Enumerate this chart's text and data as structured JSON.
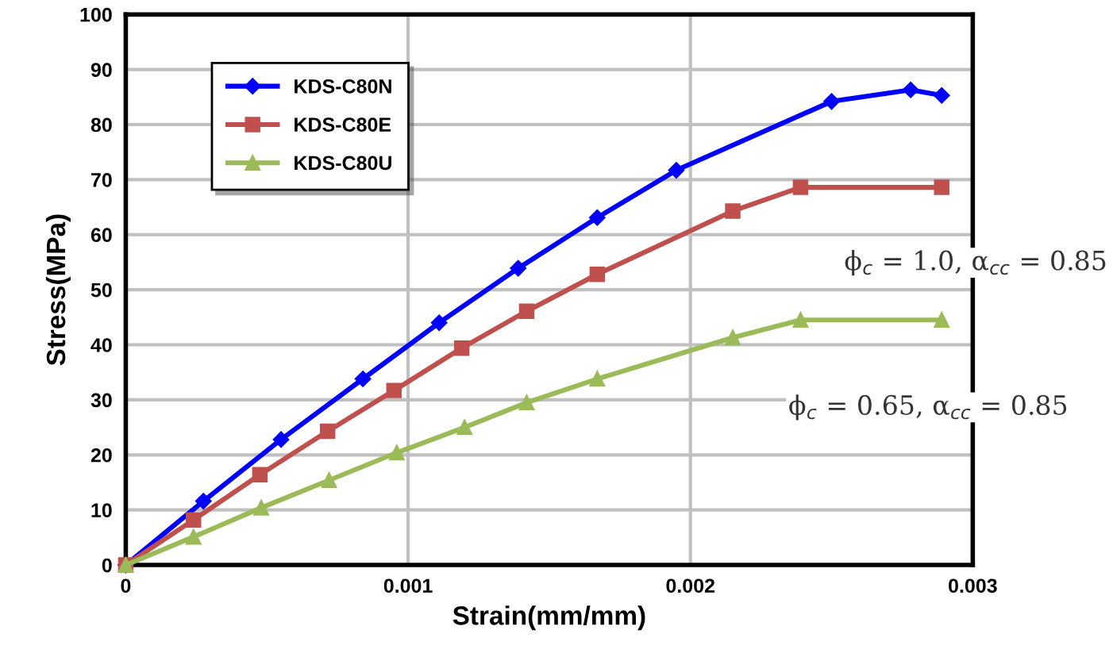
{
  "chart_data": {
    "type": "line",
    "xlabel": "Strain(mm/mm)",
    "ylabel": "Stress(MPa)",
    "xlim": [
      0,
      0.003
    ],
    "xticks": [
      0,
      0.001,
      0.002,
      0.003
    ],
    "ylim": [
      0,
      100
    ],
    "yticks": [
      0,
      10,
      20,
      30,
      40,
      50,
      60,
      70,
      80,
      90,
      100
    ],
    "grid": true,
    "legend": "top left",
    "annotations": [
      "ϕ$_{c}$ = 1.0, α$_{cc}$ = 0.85",
      "ϕ$_{c}$ = 0.65, α$_{cc}$ = 0.85"
    ],
    "series": [
      {
        "name": "KDS-C80N",
        "color": "#0000ff",
        "marker": "diamond",
        "x": [
          0,
          0.000275,
          0.00055,
          0.00084,
          0.00111,
          0.00139,
          0.00167,
          0.00195,
          0.0025,
          0.00278,
          0.00289
        ],
        "values": [
          0,
          11.6,
          22.8,
          33.8,
          44.0,
          53.9,
          63.1,
          71.7,
          84.2,
          86.3,
          85.3
        ]
      },
      {
        "name": "KDS-C80E",
        "color": "#c0504d",
        "marker": "square",
        "x": [
          0,
          0.00024,
          0.000475,
          0.000715,
          0.00095,
          0.00119,
          0.00142,
          0.00167,
          0.00215,
          0.00239,
          0.00289
        ],
        "values": [
          0,
          8.2,
          16.4,
          24.3,
          31.7,
          39.4,
          46.1,
          52.8,
          64.3,
          68.6,
          68.6
        ]
      },
      {
        "name": "KDS-C80U",
        "color": "#9bbb59",
        "marker": "triangle",
        "x": [
          0,
          0.00024,
          0.00048,
          0.00072,
          0.00096,
          0.0012,
          0.00142,
          0.00167,
          0.00215,
          0.00239,
          0.00289
        ],
        "values": [
          0,
          5.1,
          10.4,
          15.4,
          20.4,
          25.0,
          29.5,
          33.8,
          41.3,
          44.5,
          44.5
        ]
      }
    ]
  }
}
